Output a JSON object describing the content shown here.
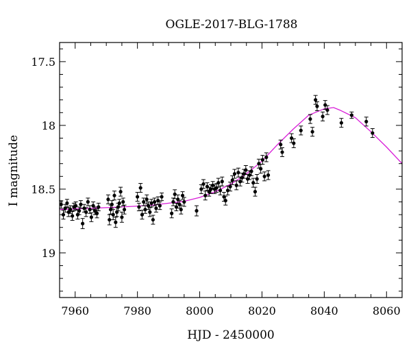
{
  "chart_data": {
    "type": "scatter",
    "title": "OGLE-2017-BLG-1788",
    "xlabel": "HJD - 2450000",
    "ylabel": "I magnitude",
    "xlim": [
      7955,
      8065
    ],
    "ylim": [
      19.35,
      17.35
    ],
    "y_inverted": true,
    "xticks": [
      7960,
      7980,
      8000,
      8020,
      8040,
      8060
    ],
    "xtick_labels": [
      "7960",
      "7980",
      "8000",
      "8020",
      "8040",
      "8060"
    ],
    "yticks": [
      17.5,
      18,
      18.5,
      19
    ],
    "ytick_labels": [
      "17.5",
      "18",
      "18.5",
      "19"
    ],
    "grid": false,
    "colors": {
      "points": "#000000",
      "model": "#d81bd8"
    },
    "series": [
      {
        "kind": "points-with-error-bars",
        "points": [
          [
            7955.5,
            18.62,
            0.03
          ],
          [
            7956.2,
            18.7,
            0.035
          ],
          [
            7956.8,
            18.65,
            0.03
          ],
          [
            7957.4,
            18.61,
            0.03
          ],
          [
            7957.9,
            18.68,
            0.035
          ],
          [
            7958.5,
            18.66,
            0.03
          ],
          [
            7959.1,
            18.71,
            0.035
          ],
          [
            7959.6,
            18.64,
            0.03
          ],
          [
            7960.2,
            18.63,
            0.03
          ],
          [
            7960.8,
            18.7,
            0.035
          ],
          [
            7961.3,
            18.67,
            0.03
          ],
          [
            7961.8,
            18.62,
            0.03
          ],
          [
            7962.4,
            18.77,
            0.04
          ],
          [
            7962.9,
            18.65,
            0.03
          ],
          [
            7963.5,
            18.68,
            0.035
          ],
          [
            7964.1,
            18.6,
            0.03
          ],
          [
            7964.7,
            18.66,
            0.03
          ],
          [
            7965.2,
            18.72,
            0.035
          ],
          [
            7965.8,
            18.63,
            0.03
          ],
          [
            7966.3,
            18.67,
            0.03
          ],
          [
            7967.0,
            18.69,
            0.035
          ],
          [
            7967.5,
            18.64,
            0.03
          ],
          [
            7970.6,
            18.58,
            0.035
          ],
          [
            7971.0,
            18.74,
            0.04
          ],
          [
            7971.4,
            18.66,
            0.035
          ],
          [
            7971.8,
            18.62,
            0.03
          ],
          [
            7972.2,
            18.7,
            0.04
          ],
          [
            7972.6,
            18.55,
            0.035
          ],
          [
            7973.0,
            18.76,
            0.04
          ],
          [
            7973.4,
            18.68,
            0.035
          ],
          [
            7973.8,
            18.64,
            0.03
          ],
          [
            7974.2,
            18.61,
            0.03
          ],
          [
            7974.6,
            18.52,
            0.035
          ],
          [
            7975.0,
            18.72,
            0.04
          ],
          [
            7975.4,
            18.6,
            0.03
          ],
          [
            7975.8,
            18.66,
            0.035
          ],
          [
            7980.0,
            18.56,
            0.035
          ],
          [
            7980.5,
            18.64,
            0.03
          ],
          [
            7981.0,
            18.49,
            0.035
          ],
          [
            7981.5,
            18.7,
            0.035
          ],
          [
            7982.0,
            18.6,
            0.03
          ],
          [
            7982.5,
            18.66,
            0.03
          ],
          [
            7983.0,
            18.58,
            0.035
          ],
          [
            7983.5,
            18.63,
            0.03
          ],
          [
            7984.0,
            18.68,
            0.035
          ],
          [
            7984.5,
            18.61,
            0.03
          ],
          [
            7985.0,
            18.74,
            0.035
          ],
          [
            7985.5,
            18.6,
            0.03
          ],
          [
            7986.0,
            18.65,
            0.03
          ],
          [
            7986.6,
            18.59,
            0.03
          ],
          [
            7987.2,
            18.63,
            0.03
          ],
          [
            7987.8,
            18.56,
            0.03
          ],
          [
            7991.0,
            18.69,
            0.035
          ],
          [
            7991.5,
            18.6,
            0.03
          ],
          [
            7992.0,
            18.54,
            0.035
          ],
          [
            7992.5,
            18.64,
            0.03
          ],
          [
            7993.0,
            18.58,
            0.035
          ],
          [
            7993.5,
            18.62,
            0.03
          ],
          [
            7994.0,
            18.66,
            0.035
          ],
          [
            7994.5,
            18.55,
            0.03
          ],
          [
            7995.0,
            18.6,
            0.035
          ],
          [
            7999.0,
            18.67,
            0.04
          ],
          [
            8000.5,
            18.5,
            0.035
          ],
          [
            8001.2,
            18.46,
            0.035
          ],
          [
            8001.8,
            18.55,
            0.035
          ],
          [
            8002.4,
            18.48,
            0.03
          ],
          [
            8003.0,
            18.52,
            0.035
          ],
          [
            8003.6,
            18.5,
            0.035
          ],
          [
            8004.2,
            18.47,
            0.03
          ],
          [
            8004.8,
            18.5,
            0.035
          ],
          [
            8005.4,
            18.49,
            0.035
          ],
          [
            8006.0,
            18.45,
            0.035
          ],
          [
            8006.6,
            18.51,
            0.035
          ],
          [
            8007.2,
            18.44,
            0.035
          ],
          [
            8007.8,
            18.56,
            0.035
          ],
          [
            8008.3,
            18.59,
            0.035
          ],
          [
            8009.0,
            18.51,
            0.035
          ],
          [
            8009.8,
            18.48,
            0.035
          ],
          [
            8010.5,
            18.43,
            0.035
          ],
          [
            8011.2,
            18.38,
            0.035
          ],
          [
            8011.8,
            18.47,
            0.035
          ],
          [
            8012.4,
            18.37,
            0.035
          ],
          [
            8013.0,
            18.44,
            0.035
          ],
          [
            8013.6,
            18.41,
            0.035
          ],
          [
            8014.2,
            18.38,
            0.035
          ],
          [
            8014.8,
            18.35,
            0.035
          ],
          [
            8015.4,
            18.42,
            0.035
          ],
          [
            8016.0,
            18.39,
            0.035
          ],
          [
            8016.6,
            18.36,
            0.035
          ],
          [
            8017.2,
            18.45,
            0.035
          ],
          [
            8017.8,
            18.52,
            0.035
          ],
          [
            8018.4,
            18.42,
            0.035
          ],
          [
            8019.0,
            18.3,
            0.035
          ],
          [
            8019.6,
            18.34,
            0.035
          ],
          [
            8020.2,
            18.27,
            0.035
          ],
          [
            8020.8,
            18.4,
            0.035
          ],
          [
            8021.4,
            18.25,
            0.035
          ],
          [
            8022.0,
            18.39,
            0.035
          ],
          [
            8026.0,
            18.15,
            0.035
          ],
          [
            8026.5,
            18.21,
            0.035
          ],
          [
            8029.5,
            18.1,
            0.035
          ],
          [
            8030.2,
            18.14,
            0.035
          ],
          [
            8032.5,
            18.04,
            0.035
          ],
          [
            8035.5,
            17.95,
            0.035
          ],
          [
            8036.2,
            18.05,
            0.035
          ],
          [
            8037.2,
            17.8,
            0.035
          ],
          [
            8037.7,
            17.85,
            0.035
          ],
          [
            8039.5,
            17.93,
            0.035
          ],
          [
            8040.3,
            17.84,
            0.035
          ],
          [
            8041.0,
            17.88,
            0.035
          ],
          [
            8045.5,
            17.98,
            0.035
          ],
          [
            8048.8,
            17.92,
            0.025
          ],
          [
            8053.5,
            17.97,
            0.035
          ],
          [
            8055.5,
            18.06,
            0.035
          ]
        ]
      },
      {
        "kind": "model-curve",
        "x": [
          7955,
          7960,
          7965,
          7970,
          7975,
          7980,
          7985,
          7990,
          7995,
          8000,
          8005,
          8010,
          8015,
          8020,
          8025,
          8030,
          8035,
          8040,
          8043,
          8045,
          8050,
          8055,
          8060,
          8065
        ],
        "y": [
          18.66,
          18.655,
          18.65,
          18.645,
          18.64,
          18.633,
          18.625,
          18.61,
          18.595,
          18.565,
          18.52,
          18.46,
          18.38,
          18.28,
          18.15,
          18.03,
          17.92,
          17.87,
          17.86,
          17.88,
          17.94,
          18.05,
          18.17,
          18.3
        ]
      }
    ]
  }
}
